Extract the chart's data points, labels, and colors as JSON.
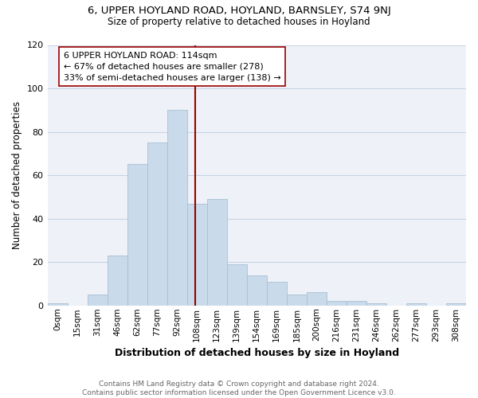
{
  "title1": "6, UPPER HOYLAND ROAD, HOYLAND, BARNSLEY, S74 9NJ",
  "title2": "Size of property relative to detached houses in Hoyland",
  "xlabel": "Distribution of detached houses by size in Hoyland",
  "ylabel": "Number of detached properties",
  "bin_labels": [
    "0sqm",
    "15sqm",
    "31sqm",
    "46sqm",
    "62sqm",
    "77sqm",
    "92sqm",
    "108sqm",
    "123sqm",
    "139sqm",
    "154sqm",
    "169sqm",
    "185sqm",
    "200sqm",
    "216sqm",
    "231sqm",
    "246sqm",
    "262sqm",
    "277sqm",
    "293sqm",
    "308sqm"
  ],
  "bar_heights": [
    1,
    0,
    5,
    23,
    65,
    75,
    90,
    47,
    49,
    19,
    14,
    11,
    5,
    6,
    2,
    2,
    1,
    0,
    1,
    0,
    1
  ],
  "bar_color": "#c9daea",
  "bar_edgecolor": "#a8c0d4",
  "vline_color": "#990000",
  "annotation_text": "6 UPPER HOYLAND ROAD: 114sqm\n← 67% of detached houses are smaller (278)\n33% of semi-detached houses are larger (138) →",
  "box_edgecolor": "#990000",
  "ylim": [
    0,
    120
  ],
  "yticks": [
    0,
    20,
    40,
    60,
    80,
    100,
    120
  ],
  "footnote": "Contains HM Land Registry data © Crown copyright and database right 2024.\nContains public sector information licensed under the Open Government Licence v3.0.",
  "grid_color": "#c8d4e4",
  "background_color": "#eef2f8"
}
